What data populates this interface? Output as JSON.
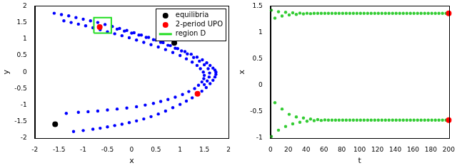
{
  "chart_data": [
    {
      "type": "scatter",
      "x_label": "x",
      "y_label": "y",
      "xlim": [
        -2,
        2
      ],
      "xticks": [
        -2,
        -1.5,
        -1,
        -0.5,
        0,
        0.5,
        1,
        1.5,
        2
      ],
      "ylim": [
        -2,
        2
      ],
      "yticks": [
        -2,
        -1.5,
        -1,
        -0.5,
        0,
        0.5,
        1,
        1.5,
        2
      ],
      "grid": false,
      "legend": "upper right",
      "series": [
        {
          "color": "#0000ff",
          "marker": "dot",
          "values": [
            [
              -1.6,
              1.78
            ],
            [
              -1.45,
              1.74
            ],
            [
              -1.3,
              1.7
            ],
            [
              -1.15,
              1.65
            ],
            [
              -1.0,
              1.6
            ],
            [
              -0.85,
              1.55
            ],
            [
              -0.7,
              1.5
            ],
            [
              -0.55,
              1.44
            ],
            [
              -0.4,
              1.38
            ],
            [
              -0.25,
              1.32
            ],
            [
              -0.1,
              1.26
            ],
            [
              0.05,
              1.19
            ],
            [
              0.2,
              1.12
            ],
            [
              0.35,
              1.05
            ],
            [
              0.5,
              0.97
            ],
            [
              0.65,
              0.89
            ],
            [
              0.8,
              0.8
            ],
            [
              0.95,
              0.71
            ],
            [
              1.1,
              0.62
            ],
            [
              1.23,
              0.54
            ],
            [
              1.35,
              0.45
            ],
            [
              1.46,
              0.37
            ],
            [
              1.55,
              0.28
            ],
            [
              1.62,
              0.2
            ],
            [
              1.68,
              0.12
            ],
            [
              1.72,
              0.06
            ],
            [
              1.74,
              0.0
            ],
            [
              1.74,
              -0.07
            ],
            [
              1.72,
              -0.15
            ],
            [
              1.68,
              -0.25
            ],
            [
              1.62,
              -0.35
            ],
            [
              1.54,
              -0.47
            ],
            [
              1.45,
              -0.58
            ],
            [
              1.35,
              -0.68
            ],
            [
              1.25,
              -0.78
            ],
            [
              1.13,
              -0.88
            ],
            [
              1.0,
              -0.98
            ],
            [
              0.85,
              -1.08
            ],
            [
              0.7,
              -1.18
            ],
            [
              0.55,
              -1.27
            ],
            [
              0.4,
              -1.35
            ],
            [
              0.25,
              -1.42
            ],
            [
              0.1,
              -1.48
            ],
            [
              -0.05,
              -1.53
            ],
            [
              -0.2,
              -1.58
            ],
            [
              -0.35,
              -1.62
            ],
            [
              -0.5,
              -1.66
            ],
            [
              -0.65,
              -1.7
            ],
            [
              -0.8,
              -1.73
            ],
            [
              -1.0,
              -1.77
            ],
            [
              -1.2,
              -1.8
            ],
            [
              -1.4,
              1.55
            ],
            [
              -1.25,
              1.5
            ],
            [
              -1.1,
              1.45
            ],
            [
              -0.95,
              1.4
            ],
            [
              -0.8,
              1.34
            ],
            [
              -0.65,
              1.28
            ],
            [
              -0.5,
              1.22
            ],
            [
              -0.35,
              1.16
            ],
            [
              -0.2,
              1.1
            ],
            [
              -0.05,
              1.04
            ],
            [
              0.1,
              0.97
            ],
            [
              0.25,
              0.9
            ],
            [
              0.4,
              0.83
            ],
            [
              0.55,
              0.76
            ],
            [
              0.7,
              0.68
            ],
            [
              0.85,
              0.59
            ],
            [
              1.0,
              0.5
            ],
            [
              1.13,
              0.4
            ],
            [
              1.25,
              0.3
            ],
            [
              1.35,
              0.2
            ],
            [
              1.42,
              0.1
            ],
            [
              1.48,
              0.0
            ],
            [
              1.5,
              -0.1
            ],
            [
              1.49,
              -0.2
            ],
            [
              1.45,
              -0.3
            ],
            [
              1.38,
              -0.4
            ],
            [
              1.3,
              -0.5
            ],
            [
              1.18,
              -0.59
            ],
            [
              1.05,
              -0.68
            ],
            [
              0.9,
              -0.76
            ],
            [
              0.75,
              -0.83
            ],
            [
              0.6,
              -0.89
            ],
            [
              0.45,
              -0.95
            ],
            [
              0.28,
              -1.0
            ],
            [
              0.1,
              -1.05
            ],
            [
              -0.1,
              -1.09
            ],
            [
              -0.3,
              -1.12
            ],
            [
              -0.5,
              -1.15
            ],
            [
              -0.7,
              -1.18
            ],
            [
              -0.9,
              -1.2
            ],
            [
              -1.1,
              -1.22
            ],
            [
              -1.35,
              -1.25
            ],
            [
              -0.3,
              1.3
            ],
            [
              -0.15,
              1.24
            ],
            [
              0.0,
              1.18
            ],
            [
              0.15,
              1.12
            ],
            [
              0.3,
              1.05
            ],
            [
              0.45,
              0.98
            ],
            [
              0.6,
              0.9
            ],
            [
              0.75,
              0.81
            ],
            [
              0.9,
              0.72
            ],
            [
              1.03,
              0.64
            ],
            [
              1.15,
              0.55
            ],
            [
              1.28,
              0.44
            ],
            [
              1.4,
              0.33
            ],
            [
              1.5,
              0.22
            ],
            [
              1.58,
              0.1
            ],
            [
              1.61,
              -0.03
            ],
            [
              1.6,
              -0.15
            ],
            [
              1.56,
              -0.27
            ],
            [
              1.5,
              -0.38
            ]
          ]
        },
        {
          "name": "equilibria",
          "color": "#000000",
          "marker": "circle",
          "values": [
            [
              0.88,
              0.88
            ],
            [
              -1.58,
              -1.58
            ]
          ]
        },
        {
          "name": "2-period UPO",
          "color": "#ff0000",
          "marker": "circle",
          "values": [
            [
              -0.66,
              1.36
            ],
            [
              1.36,
              -0.66
            ]
          ]
        },
        {
          "name": "region D",
          "type": "line",
          "color": "#22dd22",
          "marker": "none",
          "line_style": "solid",
          "values": [
            [
              -0.78,
              1.18
            ],
            [
              -0.42,
              1.18
            ],
            [
              -0.42,
              1.65
            ],
            [
              -0.78,
              1.65
            ],
            [
              -0.78,
              1.18
            ]
          ]
        }
      ]
    },
    {
      "type": "scatter",
      "x_label": "t",
      "y_label": "x",
      "xlim": [
        0,
        200
      ],
      "xticks": [
        0,
        20,
        40,
        60,
        80,
        100,
        120,
        140,
        160,
        180,
        200
      ],
      "ylim": [
        -1,
        1.5
      ],
      "yticks": [
        -1,
        -0.5,
        0,
        0.5,
        1,
        1.5
      ],
      "grid": false,
      "series": [
        {
          "color": "#33cc33",
          "marker": "dot",
          "x": [
            1,
            5,
            9,
            13,
            17,
            21,
            25,
            29,
            33,
            37,
            41,
            45,
            49,
            53,
            57,
            61,
            65,
            69,
            73,
            77,
            81,
            85,
            89,
            93,
            97,
            101,
            105,
            109,
            113,
            117,
            121,
            125,
            129,
            133,
            137,
            141,
            145,
            149,
            153,
            157,
            161,
            165,
            169,
            173,
            177,
            181,
            185,
            189,
            193,
            197
          ],
          "values": [
            1.42,
            1.27,
            1.39,
            1.31,
            1.38,
            1.33,
            1.37,
            1.34,
            1.365,
            1.35,
            1.362,
            1.355,
            1.36,
            1.36,
            1.36,
            1.36,
            1.36,
            1.36,
            1.36,
            1.36,
            1.36,
            1.36,
            1.36,
            1.36,
            1.36,
            1.36,
            1.36,
            1.36,
            1.36,
            1.36,
            1.36,
            1.36,
            1.36,
            1.36,
            1.36,
            1.36,
            1.36,
            1.36,
            1.36,
            1.36,
            1.36,
            1.36,
            1.36,
            1.36,
            1.36,
            1.36,
            1.36,
            1.36,
            1.36,
            1.36
          ]
        },
        {
          "color": "#33cc33",
          "marker": "dot",
          "x": [
            1,
            5,
            9,
            13,
            17,
            21,
            25,
            29,
            33,
            37,
            41,
            45,
            49,
            53,
            57,
            61,
            65,
            69,
            73,
            77,
            81,
            85,
            89,
            93,
            97,
            101,
            105,
            109,
            113,
            117,
            121,
            125,
            129,
            133,
            137,
            141,
            145,
            149,
            153,
            157,
            161,
            165,
            169,
            173,
            177,
            181,
            185,
            189,
            193,
            197
          ],
          "values": [
            -0.97,
            -0.33,
            -0.85,
            -0.45,
            -0.78,
            -0.55,
            -0.73,
            -0.6,
            -0.7,
            -0.62,
            -0.68,
            -0.64,
            -0.67,
            -0.65,
            -0.665,
            -0.655,
            -0.66,
            -0.66,
            -0.66,
            -0.66,
            -0.66,
            -0.66,
            -0.66,
            -0.66,
            -0.66,
            -0.66,
            -0.66,
            -0.66,
            -0.66,
            -0.66,
            -0.66,
            -0.66,
            -0.66,
            -0.66,
            -0.66,
            -0.66,
            -0.66,
            -0.66,
            -0.66,
            -0.66,
            -0.66,
            -0.66,
            -0.66,
            -0.66,
            -0.66,
            -0.66,
            -0.66,
            -0.66,
            -0.66,
            -0.66
          ]
        },
        {
          "color": "#ff0000",
          "marker": "circle",
          "x": [
            200,
            200
          ],
          "values": [
            1.36,
            -0.66
          ]
        }
      ]
    }
  ]
}
